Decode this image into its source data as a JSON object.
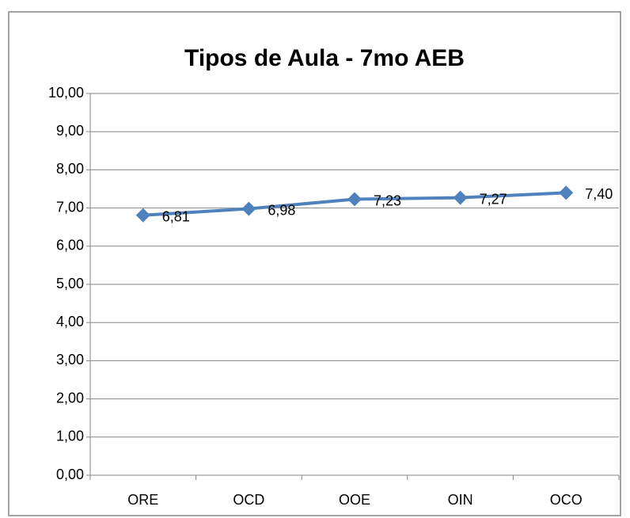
{
  "chart_data": {
    "type": "line",
    "title": "Tipos de Aula - 7mo AEB",
    "categories": [
      "ORE",
      "OCD",
      "OOE",
      "OIN",
      "OCO"
    ],
    "series": [
      {
        "name": "Tipos de Aula - 7mo AEB",
        "color": "#4f81bd",
        "values": [
          6.81,
          6.98,
          7.23,
          7.27,
          7.4
        ],
        "value_labels": [
          "6,81",
          "6,98",
          "7,23",
          "7,27",
          "7,40"
        ]
      }
    ],
    "ylim": [
      0,
      10
    ],
    "yticks": [
      {
        "value": 0,
        "label": "0,00"
      },
      {
        "value": 1,
        "label": "1,00"
      },
      {
        "value": 2,
        "label": "2,00"
      },
      {
        "value": 3,
        "label": "3,00"
      },
      {
        "value": 4,
        "label": "4,00"
      },
      {
        "value": 5,
        "label": "5,00"
      },
      {
        "value": 6,
        "label": "6,00"
      },
      {
        "value": 7,
        "label": "7,00"
      },
      {
        "value": 8,
        "label": "8,00"
      },
      {
        "value": 9,
        "label": "9,00"
      },
      {
        "value": 10,
        "label": "10,00"
      }
    ],
    "grid": true
  }
}
